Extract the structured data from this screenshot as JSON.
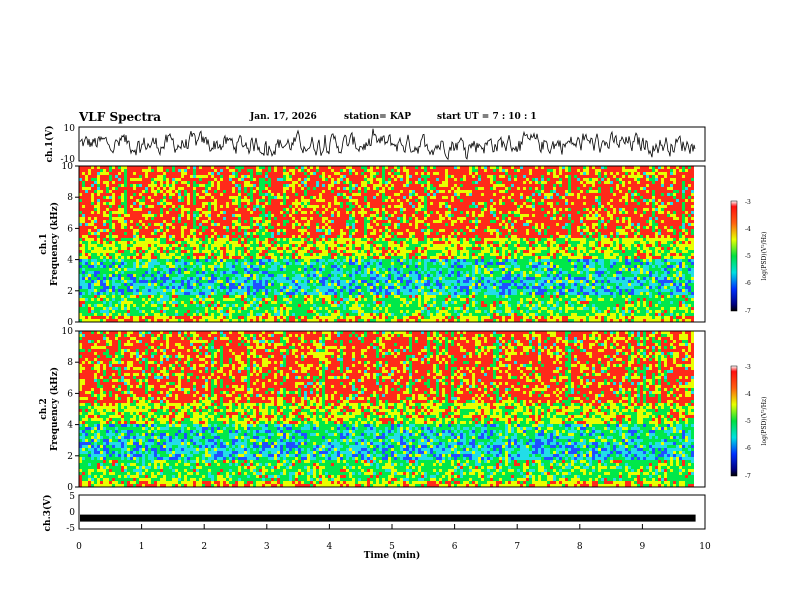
{
  "header": {
    "title": "VLF Spectra",
    "date": "Jan. 17, 2026",
    "station": "station= KAP",
    "start_ut": "start  UT =   7 : 10 : 1"
  },
  "panels": {
    "ch1_wave_ylabel": "ch.1(V)",
    "ch1_spec_ylabel1": "ch.1",
    "ch1_spec_ylabel2": "Frequency (kHz)",
    "ch2_spec_ylabel1": "ch.2",
    "ch2_spec_ylabel2": "Frequency (kHz)",
    "ch3_wave_ylabel": "ch.3(V)",
    "colorbar_label": "log(PSD)(V²/Hz)",
    "xlabel": "Time (min)"
  },
  "chart_data": [
    {
      "type": "line",
      "name": "ch1-waveform",
      "ylabel": "ch.1(V)",
      "ylim": [
        -10,
        10
      ],
      "yticks": [
        "10",
        "-10"
      ],
      "xlim": [
        0,
        10
      ],
      "x_extent_min": 9.85
    },
    {
      "type": "heatmap",
      "name": "ch1-spectrogram",
      "ylabel": "Frequency (kHz)",
      "ylim": [
        0,
        10
      ],
      "yticks": [
        "0",
        "2",
        "4",
        "6",
        "8",
        "10"
      ],
      "xlim": [
        0,
        10
      ],
      "colorbar": {
        "label": "log(PSD)(V²/Hz)",
        "range": [
          -7,
          -3
        ],
        "ticks": [
          "-3",
          "-4",
          "-5",
          "-6",
          "-7"
        ]
      }
    },
    {
      "type": "heatmap",
      "name": "ch2-spectrogram",
      "ylabel": "Frequency (kHz)",
      "ylim": [
        0,
        10
      ],
      "yticks": [
        "0",
        "2",
        "4",
        "6",
        "8",
        "10"
      ],
      "xlim": [
        0,
        10
      ],
      "colorbar": {
        "label": "log(PSD)(V²/Hz)",
        "range": [
          -7,
          -3
        ],
        "ticks": [
          "-3",
          "-4",
          "-5",
          "-6",
          "-7"
        ]
      }
    },
    {
      "type": "line",
      "name": "ch3-waveform",
      "ylabel": "ch.3(V)",
      "ylim": [
        -5,
        5
      ],
      "yticks": [
        "5",
        "0",
        "-5"
      ],
      "level": -1.8,
      "xlim": [
        0,
        10
      ],
      "xlabel": "Time (min)",
      "xticks": [
        "0",
        "1",
        "2",
        "3",
        "4",
        "5",
        "6",
        "7",
        "8",
        "9",
        "10"
      ]
    }
  ],
  "colors": {
    "red": "#ff2a1a",
    "yellow": "#e8ff00",
    "green": "#00e84a",
    "cyan": "#22dde8",
    "blue": "#2050ff"
  }
}
